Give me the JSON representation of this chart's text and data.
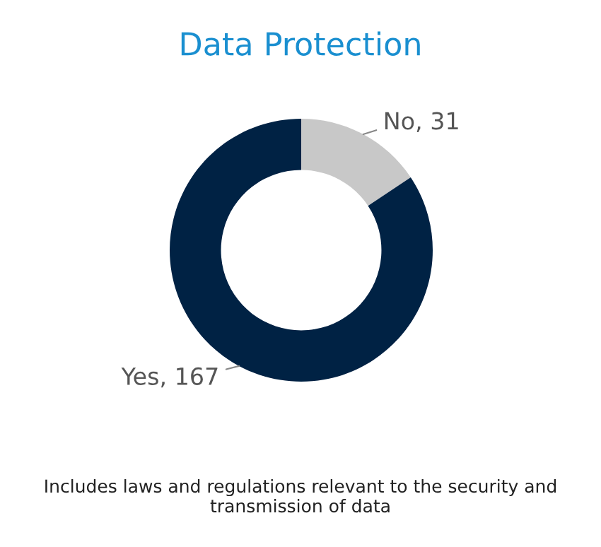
{
  "chart_data": {
    "type": "donut",
    "title": "Data Protection",
    "categories": [
      "No",
      "Yes"
    ],
    "values": [
      31,
      167
    ],
    "colors": [
      "#c8c8c8",
      "#002244"
    ],
    "value_labels": [
      ", 31",
      ", 167"
    ],
    "annotations": [
      "Includes laws and regulations relevant to the security and transmission of data"
    ]
  }
}
